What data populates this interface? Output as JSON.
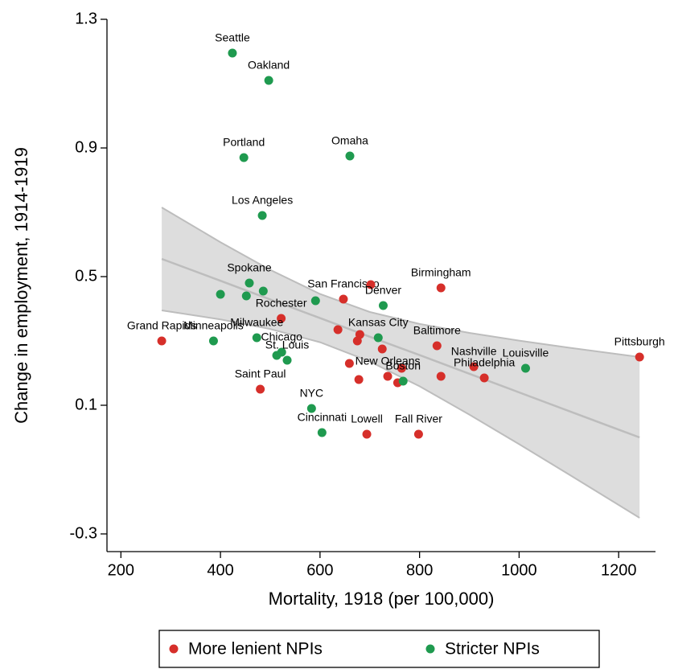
{
  "chart_data": {
    "type": "scatter",
    "x_label": "Mortality, 1918 (per 100,000)",
    "y_label": "Change in employment, 1914-1919",
    "xlim": [
      172,
      1274
    ],
    "ylim": [
      -0.355,
      1.3
    ],
    "xticks": [
      200,
      400,
      600,
      800,
      1000,
      1200
    ],
    "yticks": [
      -0.3,
      0.1,
      0.5,
      0.9,
      1.3
    ],
    "series": [
      {
        "name": "More lenient NPIs",
        "color": "#d62f2a",
        "x": [
          282,
          480,
          522,
          636,
          647,
          702,
          680,
          675,
          725,
          659,
          678,
          736,
          756,
          764,
          843,
          835,
          909,
          843,
          930,
          694,
          798,
          1242
        ],
        "values": [
          0.3,
          0.15,
          0.37,
          0.335,
          0.43,
          0.475,
          0.32,
          0.3,
          0.275,
          0.23,
          0.18,
          0.19,
          0.17,
          0.215,
          0.465,
          0.285,
          0.22,
          0.19,
          0.185,
          0.01,
          0.01,
          0.25
        ],
        "labels": [
          "Grand Rapids",
          "Saint Paul",
          "Rochester",
          null,
          "San Francisco",
          null,
          null,
          null,
          null,
          null,
          null,
          "New Orleans",
          null,
          null,
          "Birmingham",
          "Baltimore",
          "Nashville",
          null,
          "Philadelphia",
          "Lowell",
          "Fall River",
          "Pittsburgh"
        ]
      },
      {
        "name": "Stricter NPIs",
        "color": "#1f9a4f",
        "x": [
          424,
          497,
          447,
          660,
          484,
          458,
          486,
          400,
          452,
          591,
          727,
          386,
          473,
          717,
          523,
          513,
          534,
          767,
          1013,
          583,
          604
        ],
        "values": [
          1.195,
          1.11,
          0.87,
          0.875,
          0.69,
          0.48,
          0.455,
          0.445,
          0.44,
          0.425,
          0.41,
          0.3,
          0.31,
          0.31,
          0.265,
          0.255,
          0.24,
          0.175,
          0.215,
          0.09,
          0.015
        ],
        "labels": [
          "Seattle",
          "Oakland",
          "Portland",
          "Omaha",
          "Los Angeles",
          "Spokane",
          null,
          null,
          null,
          null,
          "Denver",
          "Minneapolis",
          "Milwaukee",
          "Kansas City",
          "Chicago",
          null,
          "St. Louis",
          "Boston",
          "Louisville",
          "NYC",
          "Cincinnati"
        ]
      }
    ],
    "fit": {
      "x": [
        282,
        400,
        500,
        600,
        700,
        800,
        900,
        1000,
        1100,
        1242
      ],
      "values": [
        0.555,
        0.487,
        0.429,
        0.371,
        0.313,
        0.256,
        0.198,
        0.14,
        0.082,
        0.0
      ],
      "upper": [
        0.715,
        0.607,
        0.521,
        0.446,
        0.39,
        0.353,
        0.325,
        0.301,
        0.279,
        0.25
      ],
      "lower": [
        0.395,
        0.367,
        0.337,
        0.296,
        0.236,
        0.159,
        0.071,
        -0.021,
        -0.115,
        -0.25
      ]
    }
  }
}
